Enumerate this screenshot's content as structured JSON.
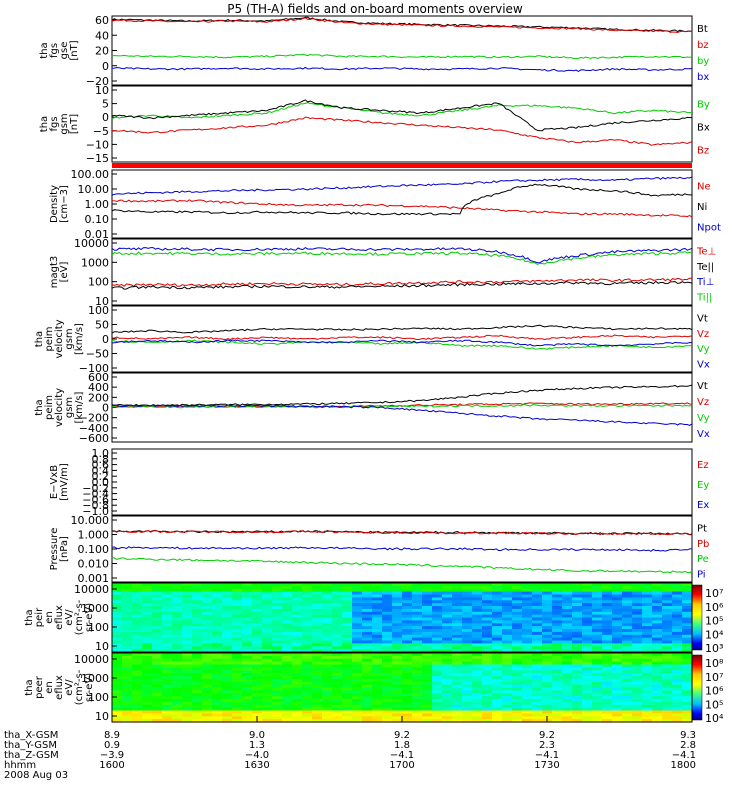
{
  "title": "P5 (TH-A) fields and on-board moments overview",
  "date": "2008 Aug 03",
  "colors": {
    "black": "#000000",
    "red": "#dd0000",
    "green": "#00cc00",
    "blue": "#0000cc"
  },
  "chart_data": [
    {
      "type": "line",
      "panel": "fgs_gse",
      "ylabel": [
        "tha",
        "fgs",
        "gse",
        "[nT]"
      ],
      "ylim": [
        -20,
        62
      ],
      "yticks": [
        "60",
        "40",
        "20",
        "0",
        "−20"
      ],
      "series": [
        {
          "name": "Bt",
          "color": "black",
          "values": [
            58,
            57,
            56,
            57,
            56,
            60,
            55,
            53,
            52,
            51,
            50,
            49,
            48,
            46,
            45,
            44
          ]
        },
        {
          "name": "bz",
          "color": "red",
          "values": [
            57,
            56,
            55,
            56,
            55,
            59,
            54,
            52,
            51,
            50,
            49,
            48,
            47,
            45,
            44,
            43
          ]
        },
        {
          "name": "by",
          "color": "green",
          "values": [
            15,
            14,
            14,
            13,
            14,
            16,
            14,
            14,
            13,
            14,
            13,
            14,
            12,
            13,
            14,
            13
          ]
        },
        {
          "name": "bx",
          "color": "blue",
          "values": [
            0,
            -1,
            -1,
            0,
            -1,
            0,
            -1,
            0,
            -1,
            -1,
            0,
            -2,
            -3,
            -1,
            -2,
            -1
          ]
        }
      ]
    },
    {
      "type": "line",
      "panel": "fgs_gsm",
      "ylabel": [
        "tha",
        "fgs",
        "gsm",
        "[nT]"
      ],
      "ylim": [
        -18,
        13
      ],
      "yticks": [
        "10",
        "5",
        "0",
        "−5",
        "−10",
        "−15"
      ],
      "series": [
        {
          "name": "By",
          "color": "green",
          "values": [
            0,
            1,
            0,
            1,
            2,
            6,
            4,
            2,
            1,
            3,
            5,
            5,
            4,
            2,
            3,
            2
          ]
        },
        {
          "name": "Bx",
          "color": "black",
          "values": [
            1,
            0,
            1,
            2,
            3,
            7,
            4,
            3,
            2,
            4,
            6,
            -5,
            -4,
            -2,
            -1,
            0
          ]
        },
        {
          "name": "Bz",
          "color": "red",
          "values": [
            -5,
            -6,
            -5,
            -4,
            -3,
            0,
            -1,
            -2,
            -3,
            -4,
            -5,
            -8,
            -10,
            -9,
            -11,
            -10
          ]
        }
      ]
    },
    {
      "type": "line",
      "panel": "density",
      "ylabel": [
        "Density",
        "[cm−3]"
      ],
      "scale": "log",
      "ylim": [
        0.01,
        150
      ],
      "yticks": [
        "100.00",
        "10.00",
        "1.00",
        "0.10",
        "0.01"
      ],
      "series": [
        {
          "name": "Ne",
          "color": "red",
          "values": [
            2,
            1.8,
            2,
            1.5,
            1.2,
            1,
            1.1,
            1,
            0.9,
            0.7,
            0.5,
            0.4,
            0.3,
            0.3,
            0.25,
            0.22
          ]
        },
        {
          "name": "Ni",
          "color": "black",
          "values": [
            0.5,
            0.4,
            0.4,
            0.35,
            0.4,
            0.35,
            0.35,
            0.3,
            0.3,
            0.3,
            5,
            20,
            10,
            8,
            4,
            5
          ]
        },
        {
          "name": "Npot",
          "color": "blue",
          "values": [
            5,
            6,
            7,
            8,
            9,
            10,
            12,
            15,
            18,
            20,
            30,
            35,
            40,
            35,
            45,
            50
          ]
        }
      ]
    },
    {
      "type": "line",
      "panel": "temperature",
      "ylabel": [
        "magt3",
        "[eV]"
      ],
      "scale": "log",
      "ylim": [
        10,
        12000
      ],
      "yticks": [
        "10000",
        "1000",
        "100",
        "10"
      ],
      "series": [
        {
          "name": "Te⊥",
          "color": "red",
          "values": [
            80,
            90,
            85,
            95,
            100,
            95,
            90,
            100,
            110,
            120,
            120,
            130,
            150,
            140,
            150,
            160
          ]
        },
        {
          "name": "Te||",
          "color": "black",
          "values": [
            60,
            70,
            65,
            70,
            75,
            70,
            70,
            75,
            80,
            90,
            95,
            100,
            110,
            100,
            110,
            120
          ]
        },
        {
          "name": "Ti⊥",
          "color": "blue",
          "values": [
            4000,
            4200,
            4000,
            3800,
            4000,
            4200,
            4000,
            3900,
            4000,
            4200,
            3000,
            1000,
            2000,
            3000,
            3500,
            4000
          ]
        },
        {
          "name": "Ti||",
          "color": "green",
          "values": [
            2500,
            2600,
            2500,
            2400,
            2500,
            2600,
            2500,
            2400,
            2500,
            2600,
            2000,
            800,
            1500,
            2200,
            2500,
            2800
          ]
        }
      ]
    },
    {
      "type": "line",
      "panel": "eesa_velocity",
      "ylabel": [
        "tha",
        "peim",
        "velocity",
        "gsm",
        "[km/s]"
      ],
      "ylim": [
        -100,
        100
      ],
      "yticks": [
        "100",
        "50",
        "0",
        "−50",
        "−100"
      ],
      "series": [
        {
          "name": "Vt",
          "color": "black",
          "values": [
            20,
            25,
            20,
            25,
            30,
            30,
            28,
            30,
            32,
            30,
            35,
            40,
            35,
            30,
            32,
            30
          ]
        },
        {
          "name": "Vz",
          "color": "red",
          "values": [
            5,
            0,
            5,
            0,
            5,
            0,
            5,
            5,
            0,
            5,
            10,
            0,
            5,
            10,
            5,
            10
          ]
        },
        {
          "name": "Vy",
          "color": "green",
          "values": [
            -5,
            -10,
            -5,
            -10,
            -15,
            -10,
            -10,
            -15,
            -10,
            -20,
            -20,
            -30,
            -25,
            -20,
            -25,
            -20
          ]
        },
        {
          "name": "Vx",
          "color": "blue",
          "values": [
            -10,
            -5,
            -10,
            -5,
            -5,
            -10,
            -10,
            -5,
            -10,
            -5,
            -10,
            -20,
            -15,
            -20,
            -15,
            -10
          ]
        }
      ]
    },
    {
      "type": "line",
      "panel": "iesa_velocity",
      "ylabel": [
        "tha",
        "peim",
        "velocity",
        "gsm",
        "[km/s]"
      ],
      "ylim": [
        -600,
        600
      ],
      "yticks": [
        "600",
        "400",
        "200",
        "0",
        "−200",
        "−400",
        "−600"
      ],
      "series": [
        {
          "name": "Vt",
          "color": "black",
          "values": [
            40,
            40,
            45,
            50,
            55,
            60,
            70,
            90,
            120,
            180,
            250,
            300,
            330,
            350,
            360,
            380
          ]
        },
        {
          "name": "Vz",
          "color": "red",
          "values": [
            20,
            20,
            20,
            20,
            20,
            20,
            20,
            30,
            40,
            50,
            60,
            70,
            60,
            60,
            70,
            70
          ]
        },
        {
          "name": "Vy",
          "color": "green",
          "values": [
            10,
            10,
            10,
            10,
            10,
            10,
            10,
            20,
            20,
            30,
            30,
            40,
            30,
            30,
            30,
            40
          ]
        },
        {
          "name": "Vx",
          "color": "blue",
          "values": [
            30,
            30,
            30,
            30,
            30,
            20,
            10,
            0,
            -50,
            -100,
            -150,
            -200,
            -220,
            -250,
            -280,
            -300
          ]
        }
      ]
    },
    {
      "type": "line",
      "panel": "efield",
      "ylabel": [
        "E−VxB",
        "[mV/m]"
      ],
      "ylim": [
        -1,
        1
      ],
      "yticks": [
        "1.0",
        "0.8",
        "0.6",
        "0.4",
        "0.2",
        "0.0",
        "−0.2",
        "−0.4",
        "−0.6",
        "−0.8",
        "−1.0"
      ],
      "series": [
        {
          "name": "Ez",
          "color": "red",
          "values": []
        },
        {
          "name": "Ey",
          "color": "green",
          "values": []
        },
        {
          "name": "Ex",
          "color": "blue",
          "values": []
        }
      ]
    },
    {
      "type": "line",
      "panel": "pressure",
      "ylabel": [
        "Pressure",
        "[nPa]"
      ],
      "scale": "log",
      "ylim": [
        0.0008,
        12
      ],
      "yticks": [
        "10.000",
        "1.000",
        "0.100",
        "0.010",
        "0.001"
      ],
      "series": [
        {
          "name": "Pt",
          "color": "black",
          "values": [
            1.3,
            1.3,
            1.2,
            1.2,
            1.2,
            1.3,
            1.2,
            1.1,
            1.1,
            1.1,
            1.05,
            1.0,
            0.95,
            0.95,
            0.95,
            0.9
          ]
        },
        {
          "name": "Pb",
          "color": "red",
          "values": [
            1.25,
            1.25,
            1.2,
            1.2,
            1.15,
            1.25,
            1.15,
            1.05,
            1.05,
            1.0,
            1.0,
            0.95,
            0.9,
            0.9,
            0.9,
            0.85
          ]
        },
        {
          "name": "Pe",
          "color": "green",
          "values": [
            0.025,
            0.022,
            0.02,
            0.018,
            0.016,
            0.014,
            0.012,
            0.011,
            0.009,
            0.008,
            0.006,
            0.005,
            0.004,
            0.004,
            0.0035,
            0.0035
          ]
        },
        {
          "name": "Pi",
          "color": "blue",
          "values": [
            0.12,
            0.12,
            0.11,
            0.11,
            0.11,
            0.12,
            0.11,
            0.1,
            0.1,
            0.1,
            0.09,
            0.09,
            0.09,
            0.09,
            0.08,
            0.09
          ]
        }
      ]
    },
    {
      "type": "heatmap",
      "panel": "ion_spectrogram",
      "ylabel": [
        "tha",
        "peir",
        "en",
        "eflux",
        "eV/",
        "(cm²-s-",
        "sr-eV)"
      ],
      "scale": "log",
      "yticks": [
        "10000",
        "1000",
        "100",
        "10"
      ],
      "colorbar": [
        "10⁷",
        "10⁶",
        "10⁵",
        "10⁴",
        "10³"
      ]
    },
    {
      "type": "heatmap",
      "panel": "electron_spectrogram",
      "ylabel": [
        "tha",
        "peer",
        "en",
        "eflux",
        "eV/",
        "(cm²-s-",
        "sr-eV)"
      ],
      "scale": "log",
      "yticks": [
        "10000",
        "1000",
        "100",
        "10"
      ],
      "colorbar": [
        "10⁸",
        "10⁷",
        "10⁶",
        "10⁵",
        "10⁴"
      ]
    }
  ],
  "x_axis": {
    "labels": [
      "tha_X-GSM",
      "tha_Y-GSM",
      "tha_Z-GSM",
      "hhmm"
    ],
    "ticks": [
      {
        "x": "8.9",
        "y": "0.9",
        "z": "−3.9",
        "t": "1600"
      },
      {
        "x": "9.0",
        "y": "1.3",
        "z": "−4.0",
        "t": "1630"
      },
      {
        "x": "9.2",
        "y": "1.8",
        "z": "−4.1",
        "t": "1700"
      },
      {
        "x": "9.2",
        "y": "2.3",
        "z": "−4.1",
        "t": "1730"
      },
      {
        "x": "9.3",
        "y": "2.8",
        "z": "−4.1",
        "t": "1800"
      }
    ]
  }
}
